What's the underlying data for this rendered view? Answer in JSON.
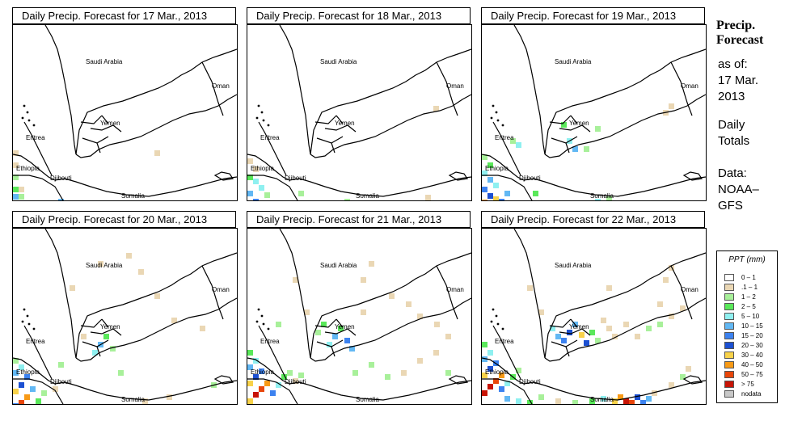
{
  "panels": [
    {
      "title": "Daily Precip. Forecast for  17 Mar., 2013",
      "labels": {
        "saudi": "Saudi Arabia",
        "oman": "Oman",
        "yemen": "Yemen",
        "eritrea": "Eritrea",
        "ethiopia": "Ethiopia",
        "djibouti": "Djibouti",
        "somalia": "Somalia"
      }
    },
    {
      "title": "Daily Precip. Forecast for  18 Mar., 2013",
      "labels": {
        "saudi": "Saudi Arabia",
        "oman": "Oman",
        "yemen": "Yemen",
        "eritrea": "Eritrea",
        "ethiopia": "Ethiopia",
        "djibouti": "Djibouti",
        "somalia": "Somalia"
      }
    },
    {
      "title": "Daily Precip. Forecast for  19 Mar., 2013",
      "labels": {
        "saudi": "Saudi Arabia",
        "oman": "Oman",
        "yemen": "Yemen",
        "eritrea": "Eritrea",
        "ethiopia": "Ethiopia",
        "djibouti": "Djibouti",
        "somalia": "Somalia"
      }
    },
    {
      "title": "Daily Precip. Forecast for  20 Mar., 2013",
      "labels": {
        "saudi": "Saudi Arabia",
        "oman": "Oman",
        "yemen": "Yemen",
        "eritrea": "Eritrea",
        "ethiopia": "Ethiopia",
        "djibouti": "Djibouti",
        "somalia": "Somalia"
      }
    },
    {
      "title": "Daily Precip. Forecast for  21 Mar., 2013",
      "labels": {
        "saudi": "Saudi Arabia",
        "oman": "Oman",
        "yemen": "Yemen",
        "eritrea": "Eritrea",
        "ethiopia": "Ethiopia",
        "djibouti": "Djibouti",
        "somalia": "Somalia"
      }
    },
    {
      "title": "Daily Precip. Forecast for  22 Mar., 2013",
      "labels": {
        "saudi": "Saudi Arabia",
        "oman": "Oman",
        "yemen": "Yemen",
        "eritrea": "Eritrea",
        "ethiopia": "Ethiopia",
        "djibouti": "Djibouti",
        "somalia": "Somalia"
      }
    }
  ],
  "sidebar": {
    "title_line1": "Precip.",
    "title_line2": "Forecast",
    "as_of_label": "as of:",
    "as_of_date_line1": "17 Mar.",
    "as_of_date_line2": "2013",
    "totals_line1": "Daily",
    "totals_line2": "Totals",
    "source_line1": "Data:",
    "source_line2": "NOAA–",
    "source_line3": "GFS"
  },
  "legend": {
    "title": "PPT (mm)",
    "classes": [
      {
        "label": "0 – 1",
        "color": "#ffffff"
      },
      {
        "label": ".1 – 1",
        "color": "#ead7b4"
      },
      {
        "label": "1 – 2",
        "color": "#a8f09a"
      },
      {
        "label": "2 – 5",
        "color": "#5ae85a"
      },
      {
        "label": "5 – 10",
        "color": "#8ff0f0"
      },
      {
        "label": "10 – 15",
        "color": "#62b8f4"
      },
      {
        "label": "15 – 20",
        "color": "#3c82f0"
      },
      {
        "label": "20 – 30",
        "color": "#1c50d2"
      },
      {
        "label": "30 – 40",
        "color": "#f8d24a"
      },
      {
        "label": "40 – 50",
        "color": "#f89a16"
      },
      {
        "label": "50 – 75",
        "color": "#e8460a"
      },
      {
        "label": "> 75",
        "color": "#c81406"
      },
      {
        "label": "nodata",
        "color": "#c8c8c8"
      }
    ]
  }
}
